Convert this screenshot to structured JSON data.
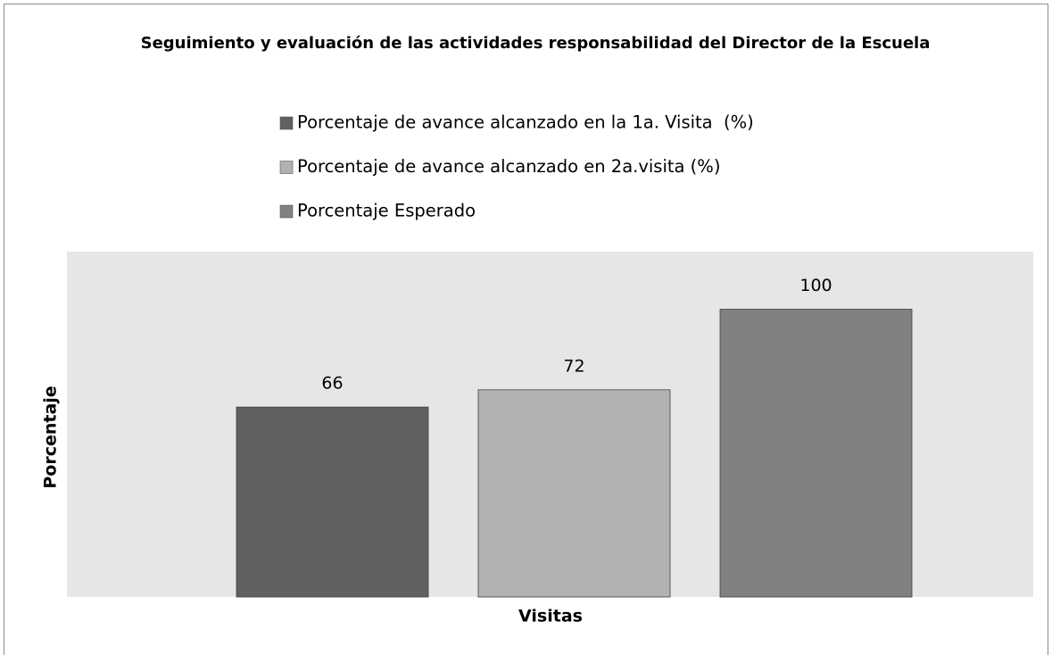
{
  "chart_data": {
    "type": "bar",
    "title": "Seguimiento y evaluación de las actividades responsabilidad del Director de la Escuela",
    "x_label": "Visitas",
    "y_label": "Porcentaje",
    "categories": [
      null
    ],
    "series": [
      {
        "name": "Porcentaje de avance alcanzado en la 1a. Visita  (%)",
        "color": "#606060",
        "values": [
          66
        ]
      },
      {
        "name": "Porcentaje de avance alcanzado en 2a.visita (%)",
        "color": "#b2b2b2",
        "values": [
          72
        ]
      },
      {
        "name": "Porcentaje Esperado",
        "color": "#808080",
        "values": [
          100
        ]
      }
    ],
    "ylim": [
      0,
      120
    ],
    "legend": "top",
    "plot_background": "#e6e6e6"
  }
}
